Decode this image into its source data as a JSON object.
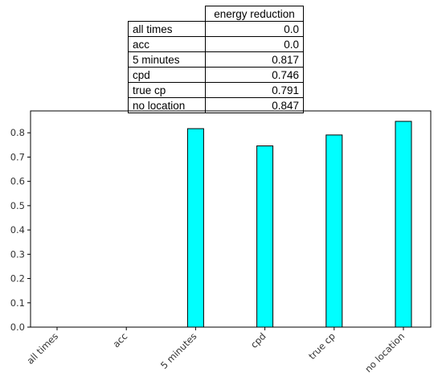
{
  "table": {
    "header": "energy reduction",
    "rows": [
      {
        "label": "all times",
        "value": "0.0"
      },
      {
        "label": "acc",
        "value": "0.0"
      },
      {
        "label": "5 minutes",
        "value": "0.817"
      },
      {
        "label": "cpd",
        "value": "0.746"
      },
      {
        "label": "true cp",
        "value": "0.791"
      },
      {
        "label": "no location",
        "value": "0.847"
      }
    ]
  },
  "chart_data": {
    "type": "bar",
    "title": "",
    "xlabel": "",
    "ylabel": "",
    "categories": [
      "all times",
      "acc",
      "5 minutes",
      "cpd",
      "true cp",
      "no location"
    ],
    "values": [
      0.0,
      0.0,
      0.817,
      0.746,
      0.791,
      0.847
    ],
    "yticks": [
      "0.0",
      "0.1",
      "0.2",
      "0.3",
      "0.4",
      "0.5",
      "0.6",
      "0.7",
      "0.8"
    ],
    "ylim": [
      0,
      0.89
    ],
    "bar_color": "#00ffff",
    "edge_color": "#000000",
    "grid": false,
    "legend": "none"
  }
}
